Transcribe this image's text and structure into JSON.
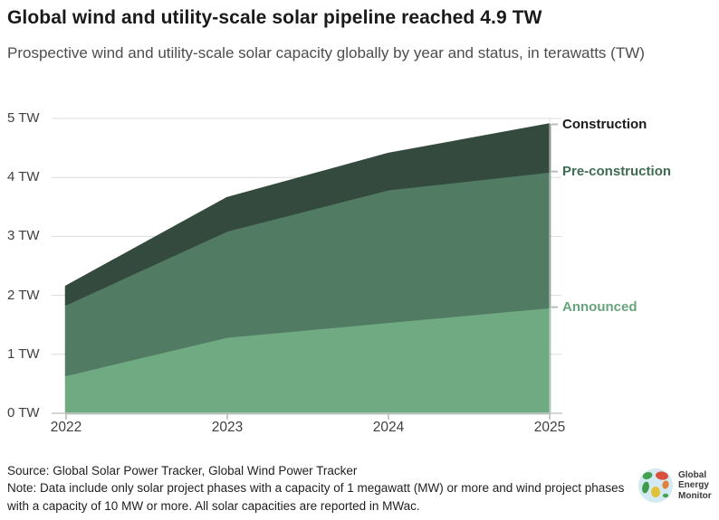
{
  "header": {
    "title": "Global wind and utility-scale solar pipeline reached 4.9 TW",
    "subtitle": "Prospective wind and utility-scale solar capacity globally by year and status, in terawatts (TW)"
  },
  "chart_data": {
    "type": "area",
    "stacked": true,
    "title": "Global wind and utility-scale solar pipeline reached 4.9 TW",
    "subtitle": "Prospective wind and utility-scale solar capacity globally by year and status, in terawatts (TW)",
    "x_labels": [
      "2022",
      "2023",
      "2024",
      "2025"
    ],
    "series": [
      {
        "name": "Announced",
        "values": [
          0.65,
          1.3,
          1.55,
          1.8
        ],
        "color": "#6faa82",
        "label_color": "#68a47c"
      },
      {
        "name": "Pre-construction",
        "values": [
          1.2,
          1.8,
          2.25,
          2.3
        ],
        "color": "#527b63",
        "label_color": "#3e6b52"
      },
      {
        "name": "Construction",
        "values": [
          0.3,
          0.55,
          0.6,
          0.8
        ],
        "color": "#344a3e",
        "label_color": "#1a1a1a"
      }
    ],
    "cumulative_totals_2025": {
      "Announced": 1.8,
      "Pre-construction": 4.1,
      "Construction": 4.9
    },
    "ylim": [
      0,
      5
    ],
    "ytick_values": [
      0,
      1,
      2,
      3,
      4,
      5
    ],
    "ytick_labels": [
      "0 TW",
      "1 TW",
      "2 TW",
      "3 TW",
      "4 TW",
      "5 TW"
    ],
    "grid": true,
    "legend_position": "right-annotations",
    "colors": {
      "gridline": "#dcdcdc",
      "baseline": "#c8c8c8",
      "year_tick": "#b5b5b5",
      "legend_dash": "#bbbbbb"
    }
  },
  "footer": {
    "source": "Source: Global Solar Power Tracker, Global Wind Power Tracker",
    "note": "Note: Data include only solar project phases with a capacity of 1 megawatt (MW) or more and wind project phases with a capacity of 10 MW or more. All solar capacities are reported in MWac.",
    "logo": {
      "lines": [
        "Global",
        "Energy",
        "Monitor"
      ]
    }
  }
}
